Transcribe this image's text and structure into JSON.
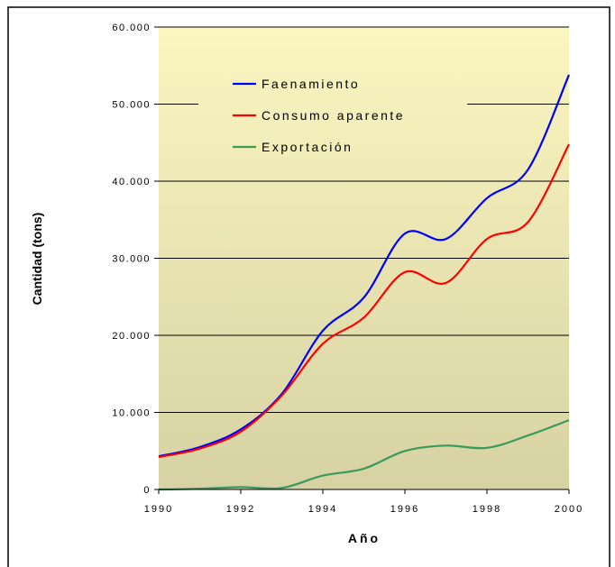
{
  "chart_data": {
    "type": "line",
    "title": "",
    "xlabel": "Año",
    "ylabel": "Cantidad (tons)",
    "xlim": [
      1990,
      2000
    ],
    "ylim": [
      0,
      60000
    ],
    "x_ticks": [
      "1990",
      "1992",
      "1994",
      "1996",
      "1998",
      "2000"
    ],
    "y_ticks": [
      "0",
      "10.000",
      "20.000",
      "30.000",
      "40.000",
      "50.000",
      "60.000"
    ],
    "x_tick_values": [
      1990,
      1992,
      1994,
      1996,
      1998,
      2000
    ],
    "y_tick_values": [
      0,
      10000,
      20000,
      30000,
      40000,
      50000,
      60000
    ],
    "grid": "horizontal",
    "legend_position": "top-left inside plot",
    "x": [
      1990,
      1991,
      1992,
      1993,
      1994,
      1995,
      1996,
      1997,
      1998,
      1999,
      2000
    ],
    "series": [
      {
        "name": "Faenamiento",
        "color": "#0000ff",
        "values": [
          4300,
          5500,
          7800,
          12400,
          20600,
          24900,
          33200,
          32500,
          37800,
          41500,
          53800
        ]
      },
      {
        "name": "Consumo aparente",
        "color": "#ff0000",
        "values": [
          4200,
          5300,
          7500,
          12200,
          18900,
          22300,
          28200,
          26800,
          32500,
          34700,
          44800
        ]
      },
      {
        "name": "Exportación",
        "color": "#3a9a5a",
        "values": [
          0,
          100,
          300,
          200,
          1800,
          2700,
          5000,
          5700,
          5400,
          7000,
          9000
        ]
      }
    ],
    "colors": {
      "plot_bg_top": "#fbf6c0",
      "plot_bg_bottom": "#d6d2a3",
      "grid": "#000000"
    }
  }
}
